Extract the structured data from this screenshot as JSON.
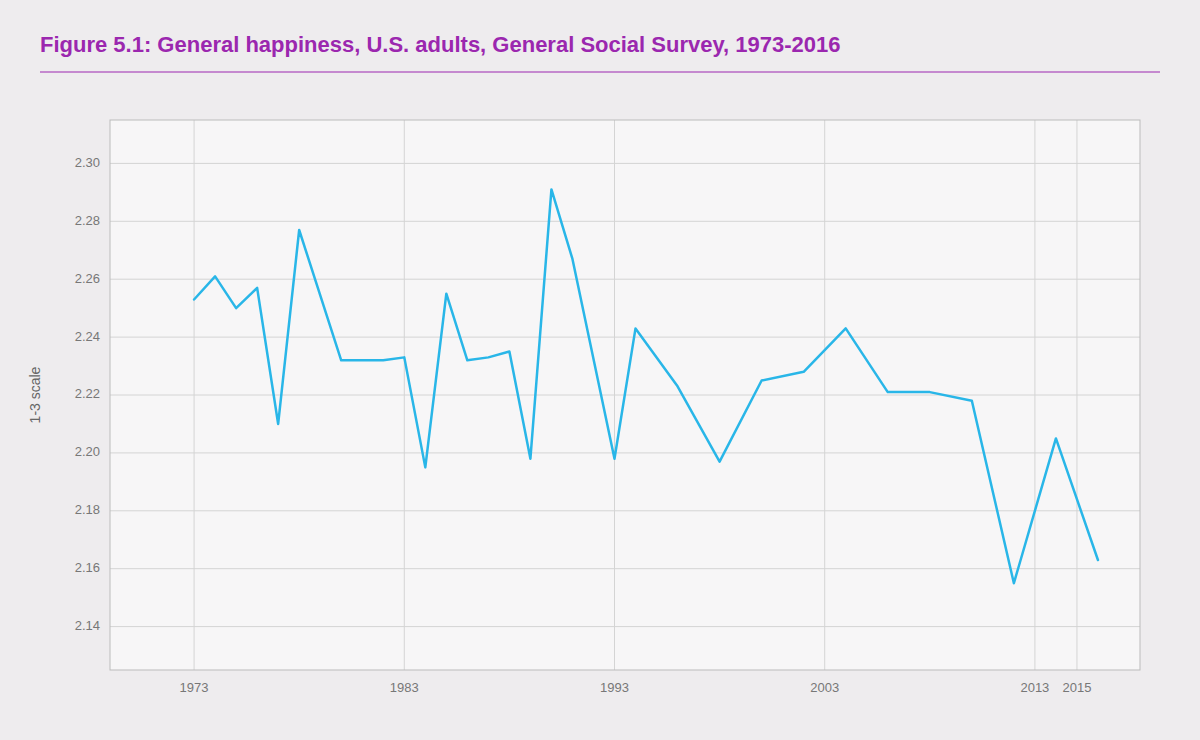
{
  "chart_data": {
    "type": "line",
    "title": "Figure 5.1: General happiness, U.S. adults, General Social Survey, 1973-2016",
    "y_label": "1-3 scale",
    "x": [
      1973,
      1974,
      1975,
      1976,
      1977,
      1978,
      1980,
      1982,
      1983,
      1984,
      1985,
      1986,
      1987,
      1988,
      1989,
      1990,
      1991,
      1993,
      1994,
      1996,
      1998,
      2000,
      2002,
      2004,
      2006,
      2008,
      2010,
      2012,
      2014,
      2016
    ],
    "values": [
      2.253,
      2.261,
      2.25,
      2.257,
      2.21,
      2.277,
      2.232,
      2.232,
      2.233,
      2.195,
      2.255,
      2.232,
      2.233,
      2.235,
      2.198,
      2.291,
      2.267,
      2.198,
      2.243,
      2.223,
      2.197,
      2.225,
      2.228,
      2.243,
      2.221,
      2.221,
      2.218,
      2.155,
      2.205,
      2.163
    ],
    "color": "#29b6e8",
    "xlim": [
      1969,
      2018
    ],
    "xticks": [
      1973,
      1983,
      1993,
      2003,
      2013,
      2015
    ],
    "ylim": [
      2.125,
      2.315
    ],
    "yticks": [
      2.14,
      2.16,
      2.18,
      {
        "value": 2.2,
        "label": "2.20"
      },
      2.22,
      2.24,
      2.26,
      2.28,
      {
        "value": 2.3,
        "label": "2.30"
      }
    ],
    "grid": true
  }
}
